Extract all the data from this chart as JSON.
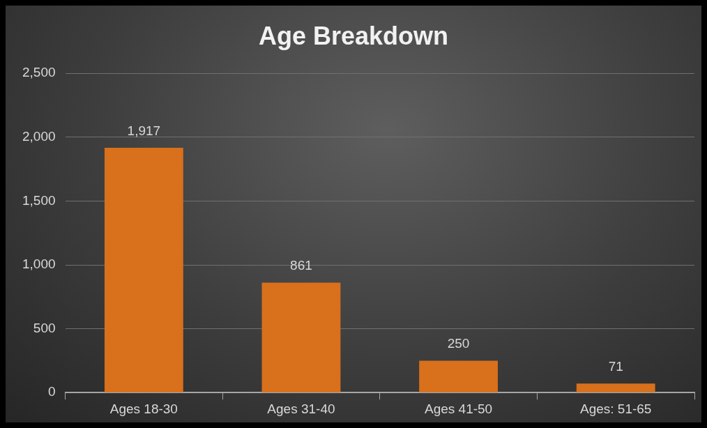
{
  "chart_data": {
    "type": "bar",
    "title": "Age Breakdown",
    "categories": [
      "Ages 18-30",
      "Ages 31-40",
      "Ages 41-50",
      "Ages: 51-65"
    ],
    "values": [
      1917,
      861,
      250,
      71
    ],
    "color": "#d9701c",
    "ylim": [
      0,
      2500
    ],
    "yticks": [
      {
        "value": 0,
        "label": "0"
      },
      {
        "value": 500,
        "label": "500"
      },
      {
        "value": 1000,
        "label": "1,000"
      },
      {
        "value": 1500,
        "label": "1,500"
      },
      {
        "value": 2000,
        "label": "2,000"
      },
      {
        "value": 2500,
        "label": "2,500"
      }
    ],
    "value_labels": [
      "1,917",
      "861",
      "250",
      "71"
    ],
    "grid": "y",
    "legend": false
  }
}
